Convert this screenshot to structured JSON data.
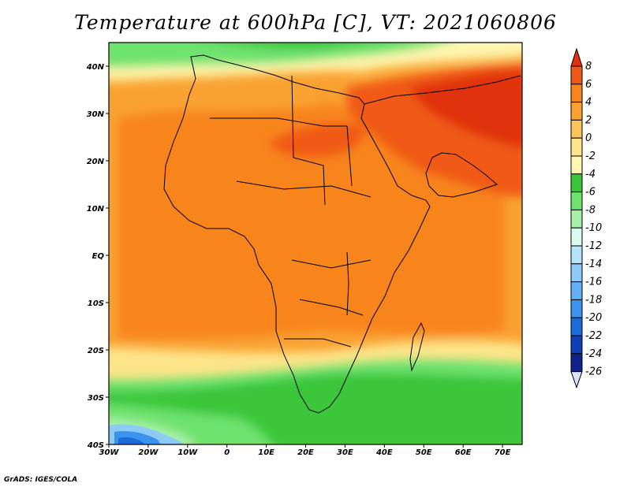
{
  "title": "Temperature at 600hPa [C], VT: 2021060806",
  "credit": "GrADS: IGES/COLA",
  "map": {
    "lon_ticks": [
      "30W",
      "20W",
      "10W",
      "0",
      "10E",
      "20E",
      "30E",
      "40E",
      "50E",
      "60E",
      "70E"
    ],
    "lat_ticks": [
      "40N",
      "30N",
      "20N",
      "10N",
      "EQ",
      "10S",
      "20S",
      "30S",
      "40S"
    ]
  },
  "colorbar": {
    "labels": [
      "8",
      "6",
      "4",
      "2",
      "0",
      "-2",
      "-4",
      "-6",
      "-8",
      "-10",
      "-12",
      "-14",
      "-16",
      "-18",
      "-20",
      "-22",
      "-24",
      "-26"
    ],
    "colors": [
      "#e03010",
      "#f05a18",
      "#f8841c",
      "#f9a232",
      "#fbc45a",
      "#fde48a",
      "#fdf6b0",
      "#3ac63a",
      "#6ee26e",
      "#a8f0a8",
      "#dcf8f0",
      "#b4e4fc",
      "#8ccaf8",
      "#64b0f4",
      "#3c92ec",
      "#1c6cd8",
      "#0c40b4",
      "#10228a",
      "#dce2fc"
    ]
  }
}
